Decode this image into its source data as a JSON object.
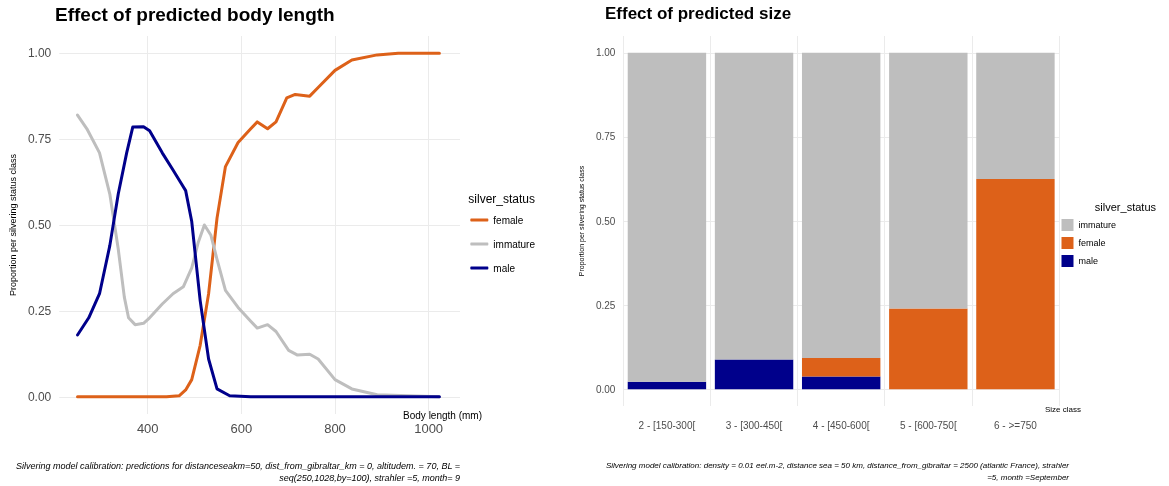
{
  "chart_data": [
    {
      "type": "line",
      "title": "Effect of predicted body length",
      "xlabel": "Body length (mm)",
      "ylabel": "Proportion per silvering status class",
      "legend_title": "silver_status",
      "legend": "right",
      "grid": true,
      "marker": "none",
      "line_style": "solid",
      "xlim": [
        211,
        1067
      ],
      "xticks": [
        400,
        600,
        800,
        1000
      ],
      "ylim": [
        -0.05,
        1.05
      ],
      "yticks": [
        {
          "value": 0,
          "label": "0.00"
        },
        {
          "value": 0.25,
          "label": "0.25"
        },
        {
          "value": 0.5,
          "label": "0.50"
        },
        {
          "value": 0.75,
          "label": "0.75"
        },
        {
          "value": 1,
          "label": "1.00"
        }
      ],
      "annotations": [
        "Silvering model calibration: predictions for distanceseakm=50, dist_from_gibraltar_km = 0, altitudem. = 70, BL = seq(250,1028,by=100), strahler =5, month= 9"
      ],
      "series": [
        {
          "name": "female",
          "color": "#dd6119",
          "x": [
            250,
            300,
            350,
            400,
            440,
            467,
            481,
            494,
            512,
            530,
            548,
            566,
            593,
            620,
            634,
            656,
            674,
            697,
            715,
            746,
            764,
            800,
            836,
            890,
            935,
            1023
          ],
          "values": [
            0,
            0,
            0,
            0,
            0,
            0.003,
            0.02,
            0.05,
            0.15,
            0.3,
            0.52,
            0.67,
            0.74,
            0.78,
            0.8,
            0.78,
            0.8,
            0.87,
            0.88,
            0.875,
            0.9,
            0.95,
            0.98,
            0.995,
            1,
            1
          ]
        },
        {
          "name": "immature",
          "color": "#bebebe",
          "x": [
            250,
            270,
            297,
            319,
            337,
            350,
            359,
            373,
            391,
            404,
            431,
            454,
            476,
            494,
            508,
            521,
            535,
            548,
            566,
            593,
            620,
            634,
            656,
            674,
            701,
            719,
            746,
            764,
            800,
            836,
            890,
            1023
          ],
          "values": [
            0.82,
            0.78,
            0.71,
            0.59,
            0.43,
            0.29,
            0.23,
            0.21,
            0.214,
            0.23,
            0.27,
            0.3,
            0.32,
            0.375,
            0.45,
            0.5,
            0.47,
            0.4,
            0.31,
            0.26,
            0.22,
            0.2,
            0.21,
            0.19,
            0.135,
            0.122,
            0.124,
            0.11,
            0.05,
            0.023,
            0.006,
            0
          ]
        },
        {
          "name": "male",
          "color": "#00008b",
          "x": [
            250,
            274,
            297,
            319,
            337,
            355,
            368,
            391,
            404,
            431,
            454,
            472,
            481,
            494,
            512,
            530,
            548,
            575,
            620,
            1023
          ],
          "values": [
            0.18,
            0.23,
            0.3,
            0.44,
            0.59,
            0.71,
            0.785,
            0.786,
            0.774,
            0.71,
            0.66,
            0.62,
            0.6,
            0.51,
            0.28,
            0.11,
            0.023,
            0.003,
            0,
            0
          ]
        }
      ]
    },
    {
      "type": "bar",
      "stacked": true,
      "title": "Effect of predicted size",
      "xlabel": "Size class",
      "ylabel": "Proportion per silvering status class",
      "legend_title": "silver_status",
      "legend": "right",
      "grid": true,
      "categories": [
        "2 - [150-300[",
        "3 - [300-450[",
        "4 - [450-600[",
        "5 - [600-750[",
        "6 - >=750"
      ],
      "ylim": [
        -0.05,
        1.05
      ],
      "yticks": [
        {
          "value": 0,
          "label": "0.00"
        },
        {
          "value": 0.25,
          "label": "0.25"
        },
        {
          "value": 0.5,
          "label": "0.50"
        },
        {
          "value": 0.75,
          "label": "0.75"
        },
        {
          "value": 1,
          "label": "1.00"
        }
      ],
      "annotations": [
        "Silvering model calibration: density = 0.01 eel.m-2, distance sea = 50 km, distance_from_gibraltar = 2500 (atlantic France), strahler =5, month =September"
      ],
      "series": [
        {
          "name": "male",
          "color": "#00008b",
          "values": [
            0.022,
            0.088,
            0.038,
            0,
            0
          ]
        },
        {
          "name": "female",
          "color": "#dd6119",
          "values": [
            0,
            0,
            0.055,
            0.24,
            0.625
          ]
        },
        {
          "name": "immature",
          "color": "#bebebe",
          "values": [
            0.978,
            0.912,
            0.907,
            0.76,
            0.375
          ]
        }
      ]
    }
  ]
}
